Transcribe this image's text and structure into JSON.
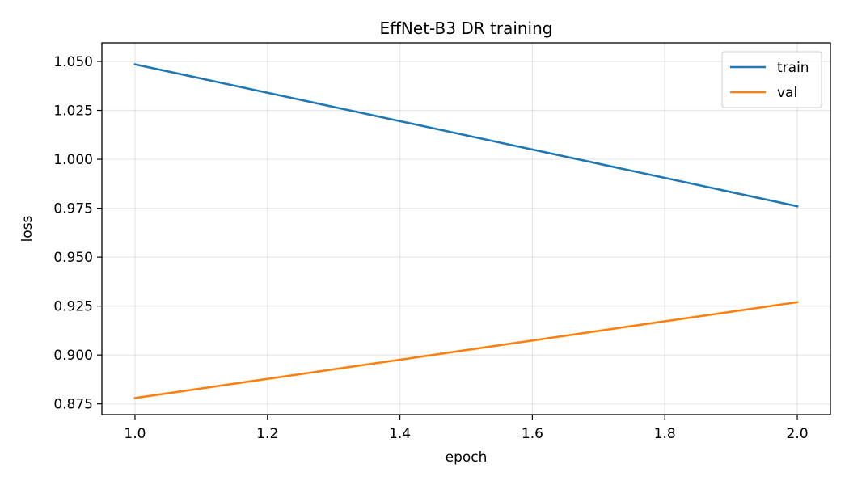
{
  "chart_data": {
    "type": "line",
    "title": "EffNet-B3 DR training",
    "xlabel": "epoch",
    "ylabel": "loss",
    "xlim": [
      0.95,
      2.05
    ],
    "ylim": [
      0.8695,
      1.0595
    ],
    "x_ticks": [
      1.0,
      1.2,
      1.4,
      1.6,
      1.8,
      2.0
    ],
    "x_tick_labels": [
      "1.0",
      "1.2",
      "1.4",
      "1.6",
      "1.8",
      "2.0"
    ],
    "y_ticks": [
      0.875,
      0.9,
      0.925,
      0.95,
      0.975,
      1.0,
      1.025,
      1.05
    ],
    "y_tick_labels": [
      "0.875",
      "0.900",
      "0.925",
      "0.950",
      "0.975",
      "1.000",
      "1.025",
      "1.050"
    ],
    "grid": true,
    "legend_position": "top-right",
    "series": [
      {
        "name": "train",
        "color": "#1f77b4",
        "x": [
          1,
          2
        ],
        "values": [
          1.0485,
          0.976
        ]
      },
      {
        "name": "val",
        "color": "#ff7f0e",
        "x": [
          1,
          2
        ],
        "values": [
          0.878,
          0.927
        ]
      }
    ]
  }
}
